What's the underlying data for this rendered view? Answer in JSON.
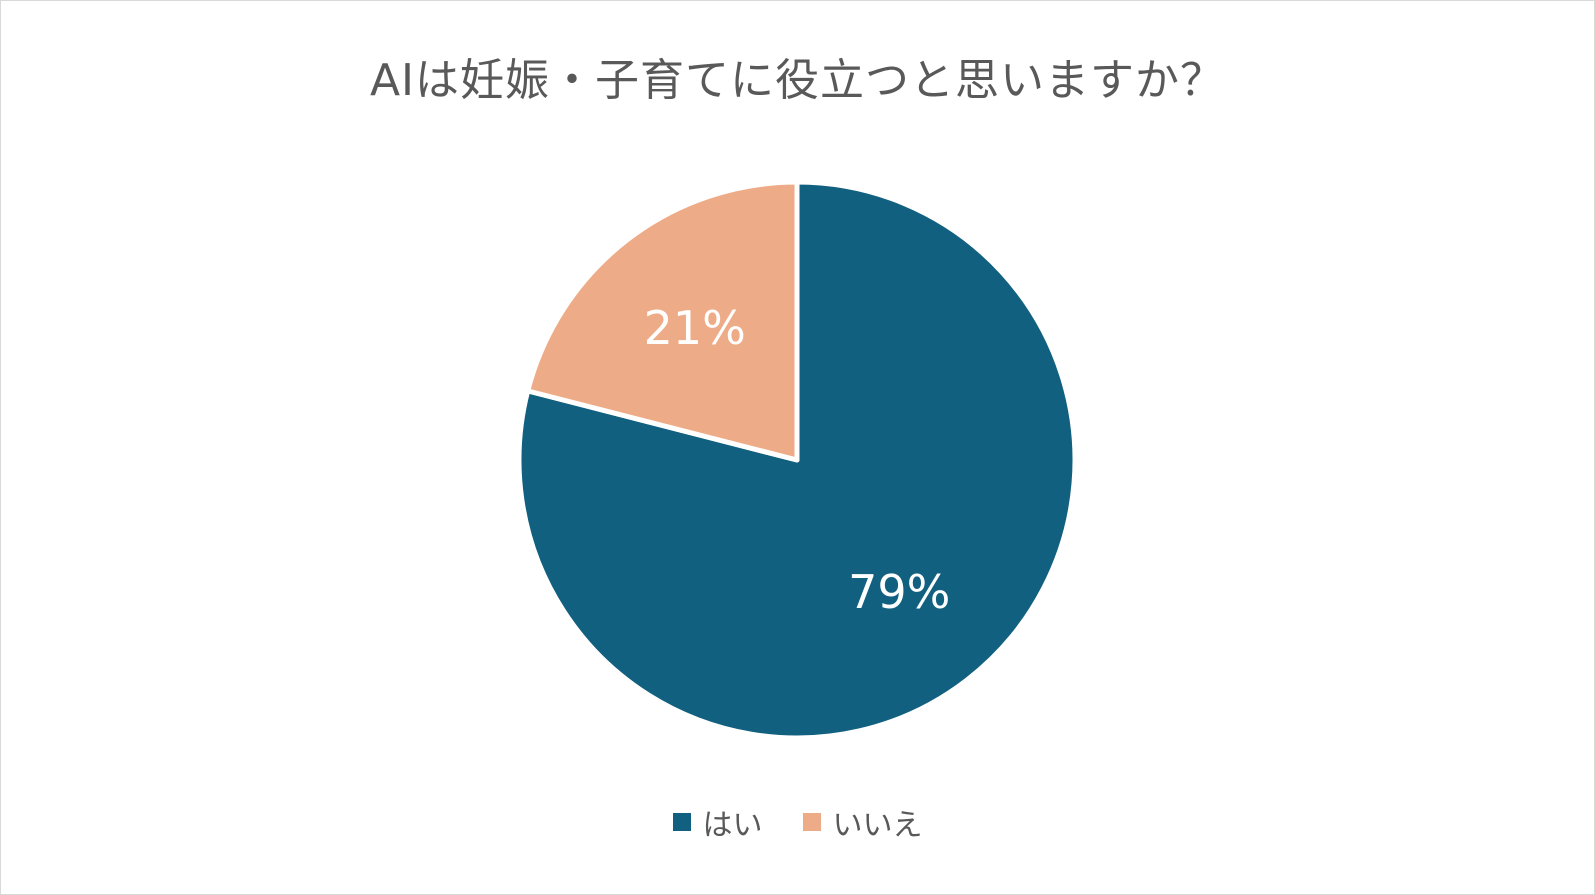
{
  "chart_data": {
    "type": "pie",
    "title": "AIは妊娠・子育てに役立つと思いますか？",
    "categories": [
      "はい",
      "いいえ"
    ],
    "values": [
      79,
      21
    ],
    "value_labels": [
      "79%",
      "21%"
    ],
    "colors": [
      "#12607f",
      "#eeab87"
    ],
    "legend_position": "bottom",
    "start_angle_deg": 0,
    "direction": "clockwise",
    "label_color": "#ffffff",
    "slice_border_color": "#ffffff"
  }
}
